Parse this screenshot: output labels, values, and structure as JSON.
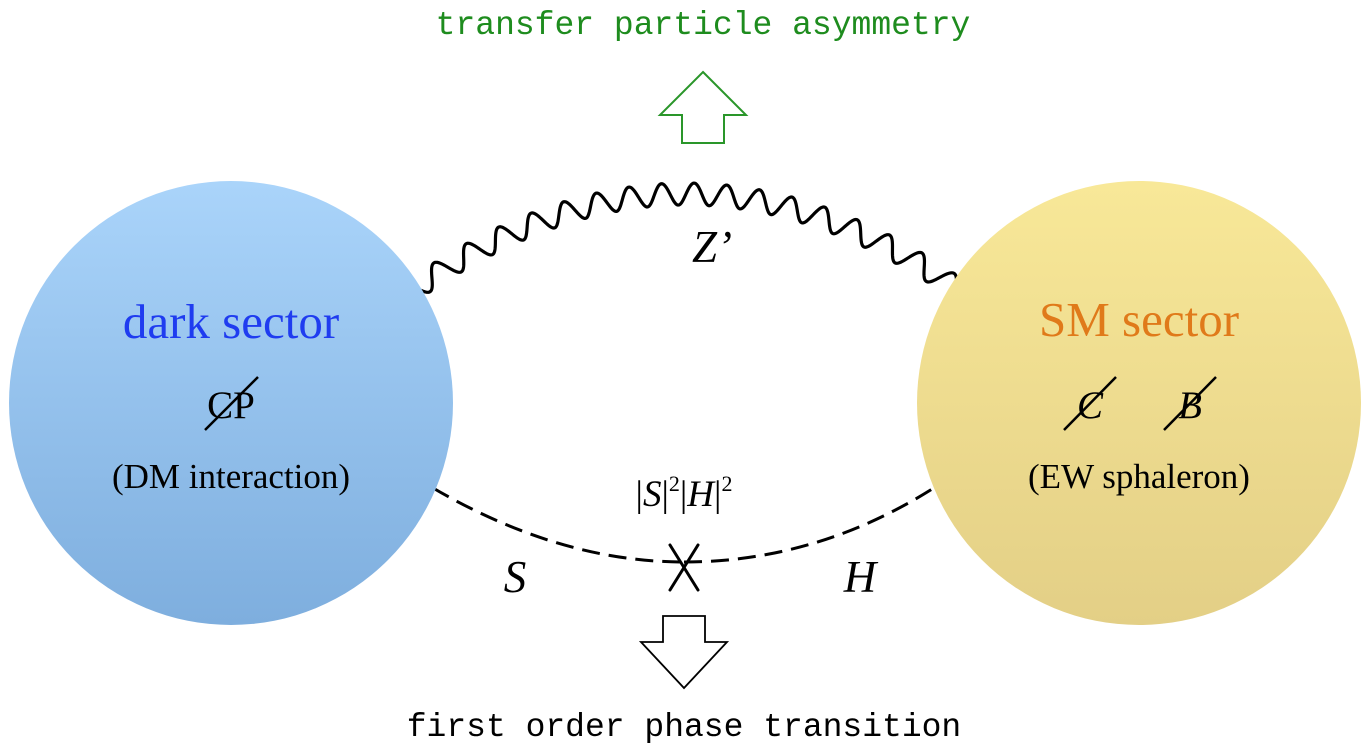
{
  "top_label": "transfer particle asymmetry",
  "bottom_label": "first order phase transition",
  "left_sector": {
    "title": "dark sector",
    "symbol": "CP",
    "note": "(DM interaction)"
  },
  "right_sector": {
    "title": "SM sector",
    "symbol_c": "C",
    "symbol_b": "B",
    "note": "(EW sphaleron)"
  },
  "mediator_label": "Z’",
  "interaction_label": {
    "bar1": "|",
    "s": "S",
    "bar2": "|",
    "exp1": "2",
    "bar3": "|",
    "h": "H",
    "bar4": "|",
    "exp2": "2"
  },
  "scalar_left_label": "S",
  "scalar_right_label": "H",
  "colors": {
    "top_label": "#1e8c1e",
    "top_arrow": "#2a962a",
    "dark_title": "#1f3cf0",
    "sm_title": "#e07a1a",
    "dark_circle_top": "#aad4fa",
    "dark_circle_bottom": "#7eaede",
    "sm_circle_top": "#f8e898",
    "sm_circle_bottom": "#e3cf86",
    "line": "#000000"
  }
}
